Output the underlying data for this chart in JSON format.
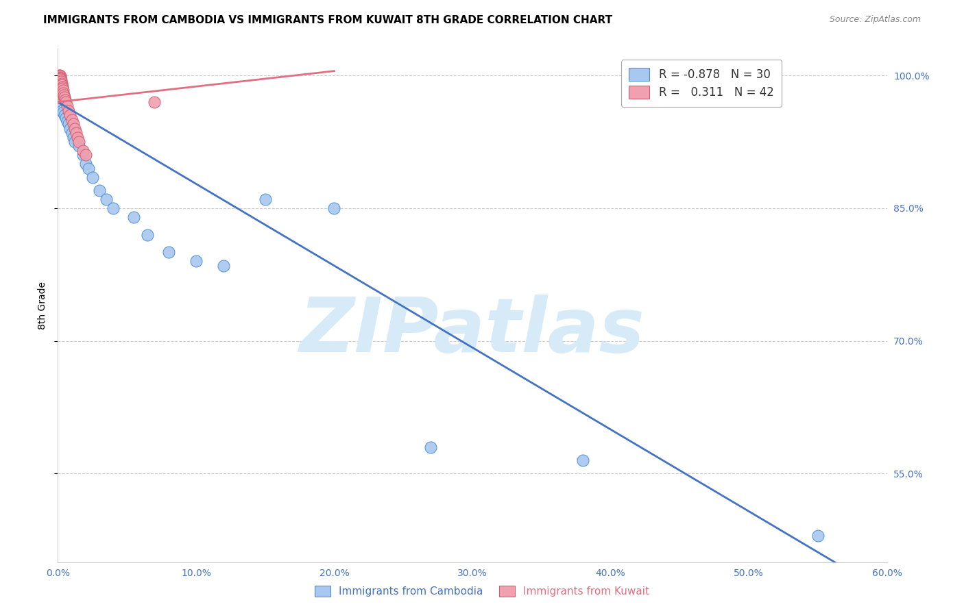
{
  "title": "IMMIGRANTS FROM CAMBODIA VS IMMIGRANTS FROM KUWAIT 8TH GRADE CORRELATION CHART",
  "source": "Source: ZipAtlas.com",
  "ylabel_left": "8th Grade",
  "ylabel_right_ticks": [
    55.0,
    70.0,
    85.0,
    100.0
  ],
  "xlabel_ticks": [
    0.0,
    10.0,
    20.0,
    30.0,
    40.0,
    50.0,
    60.0
  ],
  "xlim": [
    0.0,
    0.6
  ],
  "ylim": [
    0.45,
    1.03
  ],
  "background_color": "#ffffff",
  "watermark_text": "ZIPatlas",
  "watermark_color": "#d6eaf8",
  "legend_R1": "R = -0.878",
  "legend_N1": "N = 30",
  "legend_R2": "R =   0.311",
  "legend_N2": "N = 42",
  "blue_scatter_x": [
    0.001,
    0.002,
    0.003,
    0.004,
    0.005,
    0.006,
    0.007,
    0.008,
    0.009,
    0.01,
    0.011,
    0.012,
    0.015,
    0.018,
    0.02,
    0.022,
    0.025,
    0.03,
    0.035,
    0.04,
    0.055,
    0.065,
    0.08,
    0.1,
    0.12,
    0.15,
    0.2,
    0.27,
    0.38,
    0.55
  ],
  "blue_scatter_y": [
    0.97,
    0.965,
    0.96,
    0.958,
    0.955,
    0.952,
    0.948,
    0.945,
    0.94,
    0.935,
    0.93,
    0.925,
    0.92,
    0.91,
    0.9,
    0.895,
    0.885,
    0.87,
    0.86,
    0.85,
    0.84,
    0.82,
    0.8,
    0.79,
    0.785,
    0.86,
    0.85,
    0.58,
    0.565,
    0.48
  ],
  "pink_scatter_x": [
    0.0002,
    0.0003,
    0.0004,
    0.0005,
    0.0006,
    0.0007,
    0.0008,
    0.0009,
    0.001,
    0.0011,
    0.0012,
    0.0013,
    0.0014,
    0.0015,
    0.0016,
    0.0017,
    0.0018,
    0.002,
    0.0022,
    0.0025,
    0.0028,
    0.003,
    0.0032,
    0.0035,
    0.0038,
    0.004,
    0.0045,
    0.005,
    0.0055,
    0.006,
    0.007,
    0.008,
    0.009,
    0.01,
    0.011,
    0.012,
    0.013,
    0.014,
    0.015,
    0.018,
    0.02,
    0.07
  ],
  "pink_scatter_y": [
    0.975,
    0.978,
    0.98,
    0.982,
    0.985,
    0.988,
    0.99,
    0.993,
    0.995,
    0.997,
    0.998,
    0.999,
    1.0,
    1.0,
    0.999,
    0.998,
    0.997,
    0.996,
    0.995,
    0.993,
    0.991,
    0.989,
    0.987,
    0.985,
    0.983,
    0.98,
    0.978,
    0.975,
    0.972,
    0.97,
    0.965,
    0.96,
    0.955,
    0.95,
    0.945,
    0.94,
    0.935,
    0.93,
    0.925,
    0.915,
    0.91,
    0.97
  ],
  "blue_line_x": [
    0.0,
    0.6
  ],
  "blue_line_y": [
    0.97,
    0.415
  ],
  "pink_line_x": [
    0.0,
    0.2
  ],
  "pink_line_y": [
    0.97,
    1.005
  ],
  "blue_line_color": "#4472c4",
  "pink_line_color": "#e07080",
  "dot_blue_color": "#a8c8f0",
  "dot_pink_color": "#f0a0b0",
  "dot_blue_edge": "#5090d0",
  "dot_pink_edge": "#d06070",
  "grid_color": "#cccccc",
  "title_fontsize": 11,
  "source_fontsize": 9,
  "axis_tick_color": "#4472c4",
  "bottom_legend_blue": "Immigrants from Cambodia",
  "bottom_legend_pink": "Immigrants from Kuwait"
}
